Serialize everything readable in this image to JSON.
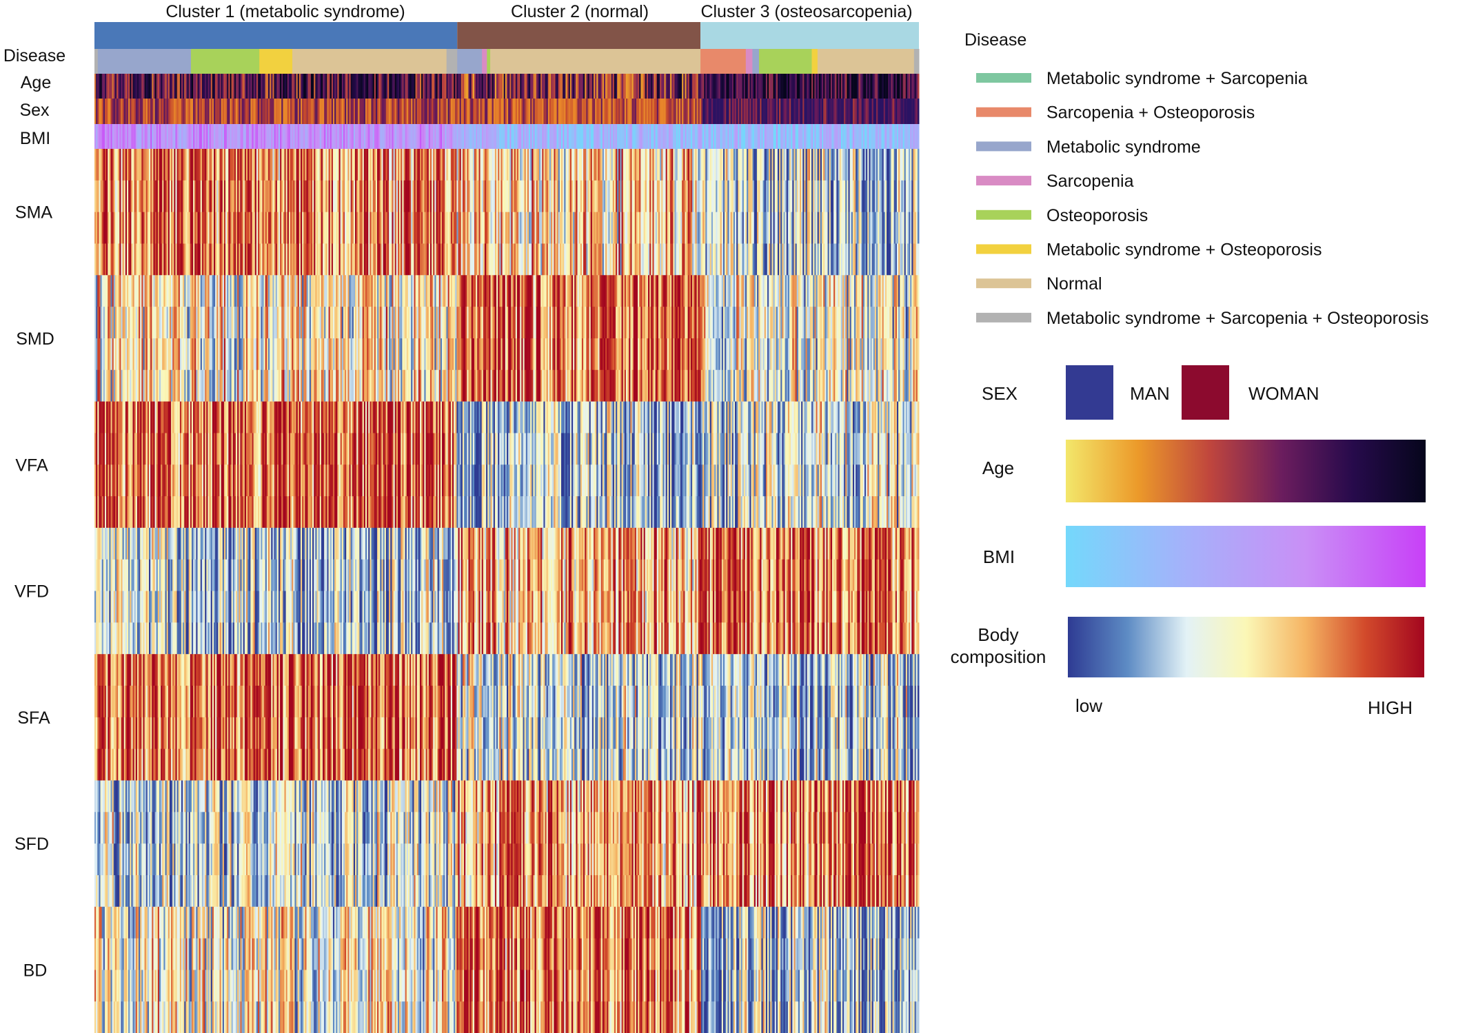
{
  "chart_data": {
    "type": "heatmap",
    "title": "",
    "clusters": [
      {
        "label": "Cluster 1 (metabolic syndrome)",
        "color": "#4a78b8",
        "start": 0.0,
        "end": 0.44
      },
      {
        "label": "Cluster 2 (normal)",
        "color": "#825448",
        "start": 0.44,
        "end": 0.735
      },
      {
        "label": "Cluster 3 (osteosarcopenia)",
        "color": "#a9d8e3",
        "start": 0.735,
        "end": 1.0
      }
    ],
    "annotation_rows": [
      "Disease",
      "Age",
      "Sex",
      "BMI"
    ],
    "features": [
      "SMA",
      "SMD",
      "VFA",
      "VFD",
      "SFA",
      "SFD",
      "BD"
    ],
    "cluster_feature_levels": {
      "note": "approximate mean standardized level per cluster (-1 low ... +1 high)",
      "cluster_1": {
        "SMA": 0.5,
        "SMD": 0.0,
        "VFA": 0.6,
        "VFD": -0.4,
        "SFA": 0.6,
        "SFD": -0.3,
        "BD": -0.1
      },
      "cluster_2": {
        "SMA": 0.15,
        "SMD": 0.6,
        "VFA": -0.45,
        "VFD": 0.3,
        "SFA": -0.3,
        "SFD": 0.4,
        "BD": 0.5
      },
      "cluster_3": {
        "SMA": -0.4,
        "SMD": -0.1,
        "VFA": -0.3,
        "VFD": 0.6,
        "SFA": -0.35,
        "SFD": 0.5,
        "BD": -0.4
      }
    },
    "disease_segments": [
      {
        "cat": 7,
        "start": 0.0,
        "end": 0.004
      },
      {
        "cat": 2,
        "start": 0.004,
        "end": 0.117
      },
      {
        "cat": 4,
        "start": 0.117,
        "end": 0.2
      },
      {
        "cat": 5,
        "start": 0.2,
        "end": 0.24
      },
      {
        "cat": 6,
        "start": 0.24,
        "end": 0.427
      },
      {
        "cat": 7,
        "start": 0.427,
        "end": 0.44
      },
      {
        "cat": 2,
        "start": 0.44,
        "end": 0.47
      },
      {
        "cat": 3,
        "start": 0.47,
        "end": 0.476
      },
      {
        "cat": 4,
        "start": 0.476,
        "end": 0.48
      },
      {
        "cat": 6,
        "start": 0.48,
        "end": 0.735
      },
      {
        "cat": 1,
        "start": 0.735,
        "end": 0.79
      },
      {
        "cat": 3,
        "start": 0.79,
        "end": 0.798
      },
      {
        "cat": 2,
        "start": 0.798,
        "end": 0.806
      },
      {
        "cat": 4,
        "start": 0.806,
        "end": 0.87
      },
      {
        "cat": 5,
        "start": 0.87,
        "end": 0.877
      },
      {
        "cat": 6,
        "start": 0.877,
        "end": 0.994
      },
      {
        "cat": 7,
        "start": 0.994,
        "end": 1.0
      }
    ],
    "legend": {
      "disease_title": "Disease",
      "disease_items": [
        {
          "label": "Metabolic syndrome + Sarcopenia",
          "color": "#7ec7a0"
        },
        {
          "label": "Sarcopenia + Osteoporosis",
          "color": "#e8896a"
        },
        {
          "label": "Metabolic syndrome",
          "color": "#97a6cc"
        },
        {
          "label": "Sarcopenia",
          "color": "#d98bc4"
        },
        {
          "label": "Osteoporosis",
          "color": "#a8d25a"
        },
        {
          "label": "Metabolic syndrome + Osteoporosis",
          "color": "#f2d13f"
        },
        {
          "label": "Normal",
          "color": "#dcc496"
        },
        {
          "label": "Metabolic syndrome + Sarcopenia + Osteoporosis",
          "color": "#b2b2b2"
        }
      ],
      "sex_title": "SEX",
      "sex_items": [
        {
          "label": "MAN",
          "color": "#333a92"
        },
        {
          "label": "WOMAN",
          "color": "#8c0a2e"
        }
      ],
      "age_title": "Age",
      "age_gradient": [
        "#f3e76b",
        "#ec9a2a",
        "#c0463d",
        "#6b1d5e",
        "#260a4b",
        "#06061c"
      ],
      "bmi_title": "BMI",
      "bmi_gradient": [
        "#74d8fb",
        "#a5b1fa",
        "#c98ff6",
        "#c840f7"
      ],
      "body_title_line1": "Body",
      "body_title_line2": "composition",
      "body_gradient": [
        "#2e3b93",
        "#5d8bc4",
        "#e3f2f6",
        "#fbf7b6",
        "#f5b463",
        "#d24a2b",
        "#a3061f"
      ],
      "low_label": "low",
      "high_label": "HIGH"
    },
    "colors": {
      "heat_low": "#2e3b93",
      "heat_high": "#a3061f"
    }
  }
}
